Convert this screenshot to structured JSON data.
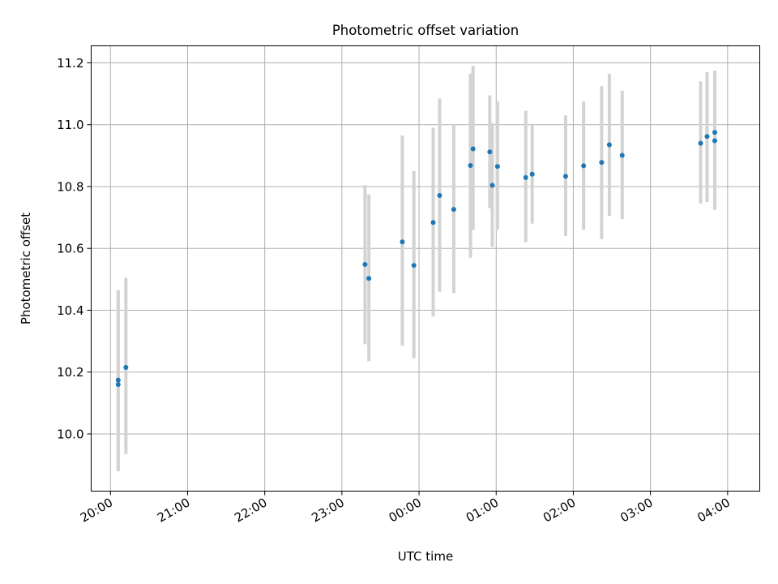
{
  "chart_data": {
    "type": "scatter",
    "title": "Photometric offset variation",
    "xlabel": "UTC time",
    "ylabel": "Photometric offset",
    "x_axis": "time",
    "xlim_minutes_from_20h": [
      -15,
      505
    ],
    "ylim": [
      9.815,
      11.255
    ],
    "xticks": [
      "20:00",
      "21:00",
      "22:00",
      "23:00",
      "00:00",
      "01:00",
      "02:00",
      "03:00",
      "04:00"
    ],
    "xtick_minutes_from_20h": [
      0,
      60,
      120,
      180,
      240,
      300,
      360,
      420,
      480
    ],
    "yticks": [
      "10.0",
      "10.2",
      "10.4",
      "10.6",
      "10.8",
      "11.0",
      "11.2"
    ],
    "grid": true,
    "marker_color": "#1f77b4",
    "errorbar_color": "#d3d3d3",
    "series": [
      {
        "points": [
          {
            "time": "20:06",
            "y": 10.174,
            "ylo": 9.88,
            "yhi": 10.465
          },
          {
            "time": "20:06",
            "y": 10.16,
            "ylo": 9.88,
            "yhi": 10.465
          },
          {
            "time": "20:12",
            "y": 10.215,
            "ylo": 9.935,
            "yhi": 10.505
          },
          {
            "time": "23:18",
            "y": 10.548,
            "ylo": 10.29,
            "yhi": 10.805
          },
          {
            "time": "23:21",
            "y": 10.503,
            "ylo": 10.235,
            "yhi": 10.775
          },
          {
            "time": "23:47",
            "y": 10.621,
            "ylo": 10.285,
            "yhi": 10.965
          },
          {
            "time": "23:56",
            "y": 10.545,
            "ylo": 10.245,
            "yhi": 10.85
          },
          {
            "time": "00:11",
            "y": 10.684,
            "ylo": 10.38,
            "yhi": 10.99
          },
          {
            "time": "00:16",
            "y": 10.771,
            "ylo": 10.46,
            "yhi": 11.085
          },
          {
            "time": "00:27",
            "y": 10.726,
            "ylo": 10.455,
            "yhi": 11.0
          },
          {
            "time": "00:40",
            "y": 10.868,
            "ylo": 10.57,
            "yhi": 11.165
          },
          {
            "time": "00:42",
            "y": 10.922,
            "ylo": 10.66,
            "yhi": 11.19
          },
          {
            "time": "00:55",
            "y": 10.912,
            "ylo": 10.73,
            "yhi": 11.095
          },
          {
            "time": "00:57",
            "y": 10.804,
            "ylo": 10.605,
            "yhi": 11.005
          },
          {
            "time": "01:01",
            "y": 10.865,
            "ylo": 10.66,
            "yhi": 11.075
          },
          {
            "time": "01:23",
            "y": 10.829,
            "ylo": 10.62,
            "yhi": 11.045
          },
          {
            "time": "01:28",
            "y": 10.84,
            "ylo": 10.68,
            "yhi": 11.0
          },
          {
            "time": "01:54",
            "y": 10.833,
            "ylo": 10.64,
            "yhi": 11.03
          },
          {
            "time": "02:08",
            "y": 10.867,
            "ylo": 10.66,
            "yhi": 11.075
          },
          {
            "time": "02:22",
            "y": 10.878,
            "ylo": 10.63,
            "yhi": 11.125
          },
          {
            "time": "02:28",
            "y": 10.935,
            "ylo": 10.705,
            "yhi": 11.165
          },
          {
            "time": "02:38",
            "y": 10.901,
            "ylo": 10.695,
            "yhi": 11.11
          },
          {
            "time": "03:39",
            "y": 10.94,
            "ylo": 10.745,
            "yhi": 11.14
          },
          {
            "time": "03:44",
            "y": 10.962,
            "ylo": 10.75,
            "yhi": 11.17
          },
          {
            "time": "03:50",
            "y": 10.975,
            "ylo": 10.725,
            "yhi": 11.175
          },
          {
            "time": "03:50",
            "y": 10.948,
            "ylo": 10.725,
            "yhi": 11.175
          }
        ]
      }
    ]
  }
}
